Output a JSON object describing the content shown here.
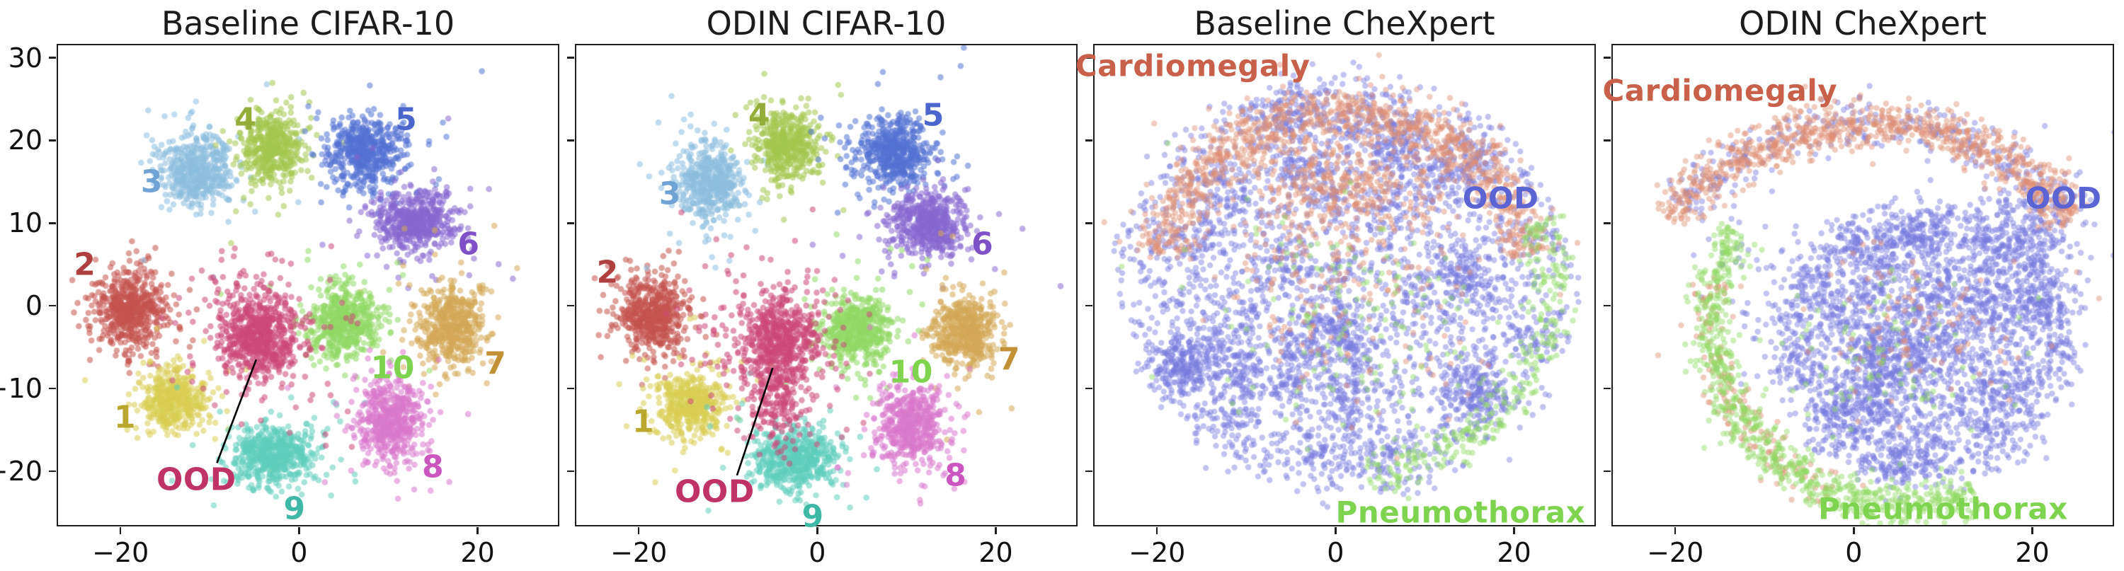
{
  "figure": {
    "background": "#ffffff",
    "border_color": "#1f1f1f",
    "tick_color": "#111111"
  },
  "chart_data": [
    {
      "id": "baseline-cifar10",
      "type": "scatter",
      "title": "Baseline CIFAR-10",
      "xlim": [
        -27,
        29
      ],
      "ylim": [
        -26.5,
        31.5
      ],
      "xticks": [
        -20,
        0,
        20
      ],
      "yticks": [
        30,
        20,
        10,
        0,
        -10,
        -20
      ],
      "show_ytick_labels": true,
      "point_radius": 4.3,
      "point_alpha": 0.55,
      "clusters": [
        {
          "name": "cluster-2",
          "color": "#c4534f",
          "cx": -19,
          "cy": -0.5,
          "sx": 2.0,
          "sy": 2.3,
          "n": 600
        },
        {
          "name": "cluster-3",
          "color": "#8cbede",
          "cx": -11.5,
          "cy": 16.5,
          "sx": 2.0,
          "sy": 2.2,
          "n": 520
        },
        {
          "name": "cluster-4",
          "color": "#a4c74f",
          "cx": -3,
          "cy": 19,
          "sx": 1.7,
          "sy": 2.1,
          "n": 460
        },
        {
          "name": "cluster-5",
          "color": "#5472d3",
          "cx": 7.5,
          "cy": 18.5,
          "sx": 2.0,
          "sy": 2.2,
          "n": 560
        },
        {
          "name": "cluster-6",
          "color": "#8668cf",
          "cx": 13,
          "cy": 10.5,
          "sx": 2.2,
          "sy": 1.9,
          "n": 560
        },
        {
          "name": "cluster-7",
          "color": "#d4a855",
          "cx": 17,
          "cy": -2.5,
          "sx": 1.8,
          "sy": 2.3,
          "n": 520
        },
        {
          "name": "cluster-10",
          "color": "#90d964",
          "cx": 5,
          "cy": -2,
          "sx": 2.0,
          "sy": 2.2,
          "n": 560
        },
        {
          "name": "cluster-1",
          "color": "#d8cd54",
          "cx": -14,
          "cy": -11.5,
          "sx": 1.9,
          "sy": 1.9,
          "n": 470
        },
        {
          "name": "cluster-9",
          "color": "#5ecdbb",
          "cx": -3,
          "cy": -18,
          "sx": 2.5,
          "sy": 1.9,
          "n": 560
        },
        {
          "name": "cluster-8",
          "color": "#d878cc",
          "cx": 10,
          "cy": -14,
          "sx": 1.9,
          "sy": 2.4,
          "n": 560
        },
        {
          "name": "cluster-ood",
          "color": "#cc4878",
          "cx": -4.5,
          "cy": -3.5,
          "sx": 2.2,
          "sy": 2.5,
          "n": 760,
          "out_frac": 0.2,
          "out_scale": 2.3
        }
      ],
      "labels": [
        {
          "text": "2",
          "name": "cluster-label-2",
          "color": "#b04040",
          "x": -24,
          "y": 5,
          "size": 44
        },
        {
          "text": "3",
          "name": "cluster-label-3",
          "color": "#6fa3d4",
          "x": -16.5,
          "y": 15,
          "size": 44
        },
        {
          "text": "4",
          "name": "cluster-label-4",
          "color": "#94ad39",
          "x": -6,
          "y": 22.5,
          "size": 44
        },
        {
          "text": "5",
          "name": "cluster-label-5",
          "color": "#4b66cc",
          "x": 12,
          "y": 22.5,
          "size": 44
        },
        {
          "text": "6",
          "name": "cluster-label-6",
          "color": "#7e52c6",
          "x": 19,
          "y": 7.5,
          "size": 44
        },
        {
          "text": "7",
          "name": "cluster-label-7",
          "color": "#c29136",
          "x": 22,
          "y": -7,
          "size": 44
        },
        {
          "text": "8",
          "name": "cluster-label-8",
          "color": "#cc56c0",
          "x": 15,
          "y": -19.5,
          "size": 44
        },
        {
          "text": "9",
          "name": "cluster-label-9",
          "color": "#3fb8a5",
          "x": -0.5,
          "y": -24.5,
          "size": 44
        },
        {
          "text": "10",
          "name": "cluster-label-10",
          "color": "#7ed44e",
          "x": 10.5,
          "y": -7.5,
          "size": 44
        },
        {
          "text": "1",
          "name": "cluster-label-1",
          "color": "#b9a72e",
          "x": -19.5,
          "y": -13.5,
          "size": 44
        }
      ],
      "callout": {
        "text": "OOD",
        "color": "#c03366",
        "tx": -11.5,
        "ty": -21,
        "x1": -9.2,
        "y1": -19,
        "x2": -4.8,
        "y2": -6.5
      }
    },
    {
      "id": "odin-cifar10",
      "type": "scatter",
      "title": "ODIN CIFAR-10",
      "xlim": [
        -27,
        29
      ],
      "ylim": [
        -26.5,
        31.5
      ],
      "xticks": [
        -20,
        0,
        20
      ],
      "yticks": [
        30,
        20,
        10,
        0,
        -10,
        -20
      ],
      "show_ytick_labels": false,
      "point_radius": 4.3,
      "point_alpha": 0.55,
      "clusters": [
        {
          "name": "cluster-2",
          "color": "#c4534f",
          "cx": -18.5,
          "cy": -1,
          "sx": 2.0,
          "sy": 2.2,
          "n": 560
        },
        {
          "name": "cluster-3",
          "color": "#8cbede",
          "cx": -12,
          "cy": 15,
          "sx": 1.9,
          "sy": 2.2,
          "n": 500
        },
        {
          "name": "cluster-4",
          "color": "#a4c74f",
          "cx": -3.5,
          "cy": 19.5,
          "sx": 1.8,
          "sy": 2.2,
          "n": 480
        },
        {
          "name": "cluster-5",
          "color": "#5472d3",
          "cx": 8.5,
          "cy": 18.5,
          "sx": 2.0,
          "sy": 2.1,
          "n": 560
        },
        {
          "name": "cluster-6",
          "color": "#8668cf",
          "cx": 12.5,
          "cy": 10,
          "sx": 2.1,
          "sy": 1.9,
          "n": 540
        },
        {
          "name": "cluster-7",
          "color": "#d4a855",
          "cx": 16.5,
          "cy": -3,
          "sx": 1.8,
          "sy": 2.2,
          "n": 500
        },
        {
          "name": "cluster-10",
          "color": "#90d964",
          "cx": 4.5,
          "cy": -3,
          "sx": 1.9,
          "sy": 2.1,
          "n": 540
        },
        {
          "name": "cluster-1",
          "color": "#d8cd54",
          "cx": -14,
          "cy": -12,
          "sx": 1.9,
          "sy": 1.9,
          "n": 470
        },
        {
          "name": "cluster-9",
          "color": "#5ecdbb",
          "cx": -2.5,
          "cy": -18.5,
          "sx": 2.4,
          "sy": 1.9,
          "n": 560
        },
        {
          "name": "cluster-8",
          "color": "#d878cc",
          "cx": 10.5,
          "cy": -14.5,
          "sx": 1.9,
          "sy": 2.3,
          "n": 540
        },
        {
          "name": "cluster-ood",
          "color": "#cc4878",
          "cx": -4.5,
          "cy": -4.5,
          "sx": 2.1,
          "sy": 2.6,
          "n": 700,
          "out_frac": 0.25,
          "out_scale": 2.3
        },
        {
          "name": "cluster-ood-trail",
          "color": "#cc4878",
          "cx": -4.5,
          "cy": -11.5,
          "sx": 1.4,
          "sy": 3.0,
          "n": 170
        }
      ],
      "labels": [
        {
          "text": "2",
          "name": "cluster-label-2",
          "color": "#b04040",
          "x": -23.5,
          "y": 4,
          "size": 44
        },
        {
          "text": "3",
          "name": "cluster-label-3",
          "color": "#6fa3d4",
          "x": -16.5,
          "y": 13.5,
          "size": 44
        },
        {
          "text": "4",
          "name": "cluster-label-4",
          "color": "#94ad39",
          "x": -6.5,
          "y": 23,
          "size": 44
        },
        {
          "text": "5",
          "name": "cluster-label-5",
          "color": "#4b66cc",
          "x": 13,
          "y": 23,
          "size": 44
        },
        {
          "text": "6",
          "name": "cluster-label-6",
          "color": "#7e52c6",
          "x": 18.5,
          "y": 7.5,
          "size": 44
        },
        {
          "text": "7",
          "name": "cluster-label-7",
          "color": "#c29136",
          "x": 21.5,
          "y": -6.5,
          "size": 44
        },
        {
          "text": "8",
          "name": "cluster-label-8",
          "color": "#cc56c0",
          "x": 15.5,
          "y": -20.5,
          "size": 44
        },
        {
          "text": "9",
          "name": "cluster-label-9",
          "color": "#3fb8a5",
          "x": -0.5,
          "y": -25.5,
          "size": 44
        },
        {
          "text": "10",
          "name": "cluster-label-10",
          "color": "#7ed44e",
          "x": 10.5,
          "y": -8,
          "size": 44
        },
        {
          "text": "1",
          "name": "cluster-label-1",
          "color": "#b9a72e",
          "x": -19.5,
          "y": -14,
          "size": 44
        }
      ],
      "callout": {
        "text": "OOD",
        "color": "#c03366",
        "tx": -11.5,
        "ty": -22.5,
        "x1": -9,
        "y1": -20.5,
        "x2": -5,
        "y2": -7.5
      }
    },
    {
      "id": "baseline-chexpert",
      "type": "scatter",
      "title": "Baseline CheXpert",
      "xlim": [
        -27,
        29
      ],
      "ylim": [
        -26.5,
        31.5
      ],
      "xticks": [
        -20,
        0,
        20
      ],
      "yticks": [
        30,
        20,
        10,
        0,
        -10,
        -20
      ],
      "show_ytick_labels": false,
      "point_radius": 4.2,
      "point_alpha": 0.45,
      "clusters": [
        {
          "name": "ood-points",
          "color": "#7779dd",
          "shape": "disc",
          "cx": 1,
          "cy": 2.5,
          "r": 25,
          "n": 4200
        },
        {
          "name": "cardiomegaly-edge",
          "color": "#dd8f74",
          "shape": "arc",
          "cx": 1,
          "cy": 2.5,
          "r": 21,
          "a1": 10,
          "a2": 170,
          "th": 1.7,
          "n": 1000
        },
        {
          "name": "cardiomegaly-top",
          "color": "#dd8f74",
          "cx": 1,
          "cy": 15,
          "sx": 6,
          "sy": 3.5,
          "n": 420
        },
        {
          "name": "cardiomegaly-scatter",
          "color": "#dd8f74",
          "cx": 1,
          "cy": 2,
          "sx": 7,
          "sy": 7,
          "n": 180
        },
        {
          "name": "pneumothorax-edge",
          "color": "#90d964",
          "shape": "arc",
          "cx": 1,
          "cy": 2.5,
          "r": 23,
          "a1": -85,
          "a2": 20,
          "th": 1.4,
          "n": 330
        },
        {
          "name": "pneumothorax-scatter",
          "color": "#90d964",
          "cx": 2,
          "cy": -2,
          "sx": 7.5,
          "sy": 6.5,
          "n": 150
        }
      ],
      "labels": [
        {
          "text": "Cardiomegaly",
          "name": "class-label-cardiomegaly",
          "color": "#c9604a",
          "x": -16,
          "y": 29,
          "size": 42
        },
        {
          "text": "OOD",
          "name": "class-label-ood",
          "color": "#5c63d2",
          "x": 18.5,
          "y": 13,
          "size": 42
        },
        {
          "text": "Pneumothorax",
          "name": "class-label-pneumothorax",
          "color": "#7ed44e",
          "x": 14,
          "y": -25,
          "size": 42
        }
      ],
      "callout": null
    },
    {
      "id": "odin-chexpert",
      "type": "scatter",
      "title": "ODIN CheXpert",
      "xlim": [
        -27,
        29
      ],
      "ylim": [
        -26.5,
        31.5
      ],
      "xticks": [
        -20,
        0,
        20
      ],
      "yticks": [
        30,
        20,
        10,
        0,
        -10,
        -20
      ],
      "show_ytick_labels": false,
      "point_radius": 4.2,
      "point_alpha": 0.45,
      "clusters": [
        {
          "name": "ood-points",
          "color": "#7779dd",
          "shape": "disc",
          "cx": 8,
          "cy": -4.5,
          "r": 17,
          "n": 3000
        },
        {
          "name": "ood-upper-right",
          "color": "#7779dd",
          "cx": 19,
          "cy": 8,
          "sx": 3,
          "sy": 3.5,
          "n": 320
        },
        {
          "name": "ood-top-arc",
          "color": "#7779dd",
          "shape": "arc",
          "cx": 2,
          "cy": -6,
          "r": 28,
          "a1": 40,
          "a2": 140,
          "th": 1.5,
          "n": 320
        },
        {
          "name": "ood-left-scatter",
          "color": "#7779dd",
          "cx": -5,
          "cy": 2,
          "sx": 6,
          "sy": 5,
          "n": 130
        },
        {
          "name": "cardiomegaly-arc",
          "color": "#dd8f74",
          "shape": "arc",
          "cx": 2,
          "cy": -6,
          "r": 28,
          "a1": 36,
          "a2": 144,
          "th": 1.5,
          "n": 900
        },
        {
          "name": "cardiomegaly-crescent",
          "color": "#dd8f74",
          "shape": "arc",
          "cx": 6,
          "cy": -2,
          "r": 22,
          "a1": 165,
          "a2": 250,
          "th": 1.3,
          "n": 170
        },
        {
          "name": "cardiomegaly-scatter",
          "color": "#dd8f74",
          "cx": 8,
          "cy": -2,
          "sx": 6,
          "sy": 5,
          "n": 100
        },
        {
          "name": "pneumothorax-crescent",
          "color": "#90d964",
          "shape": "arc",
          "cx": 6,
          "cy": -2,
          "r": 22,
          "a1": 150,
          "a2": 290,
          "th": 1.3,
          "n": 780
        },
        {
          "name": "pneumothorax-scatter",
          "color": "#90d964",
          "cx": 4,
          "cy": -7,
          "sx": 6,
          "sy": 5,
          "n": 90
        }
      ],
      "labels": [
        {
          "text": "Cardiomegaly",
          "name": "class-label-cardiomegaly",
          "color": "#c9604a",
          "x": -15,
          "y": 26,
          "size": 42
        },
        {
          "text": "OOD",
          "name": "class-label-ood",
          "color": "#5c63d2",
          "x": 23.5,
          "y": 13,
          "size": 42
        },
        {
          "text": "Pneumothorax",
          "name": "class-label-pneumothorax",
          "color": "#7ed44e",
          "x": 10,
          "y": -24.5,
          "size": 42
        }
      ],
      "callout": null
    }
  ]
}
